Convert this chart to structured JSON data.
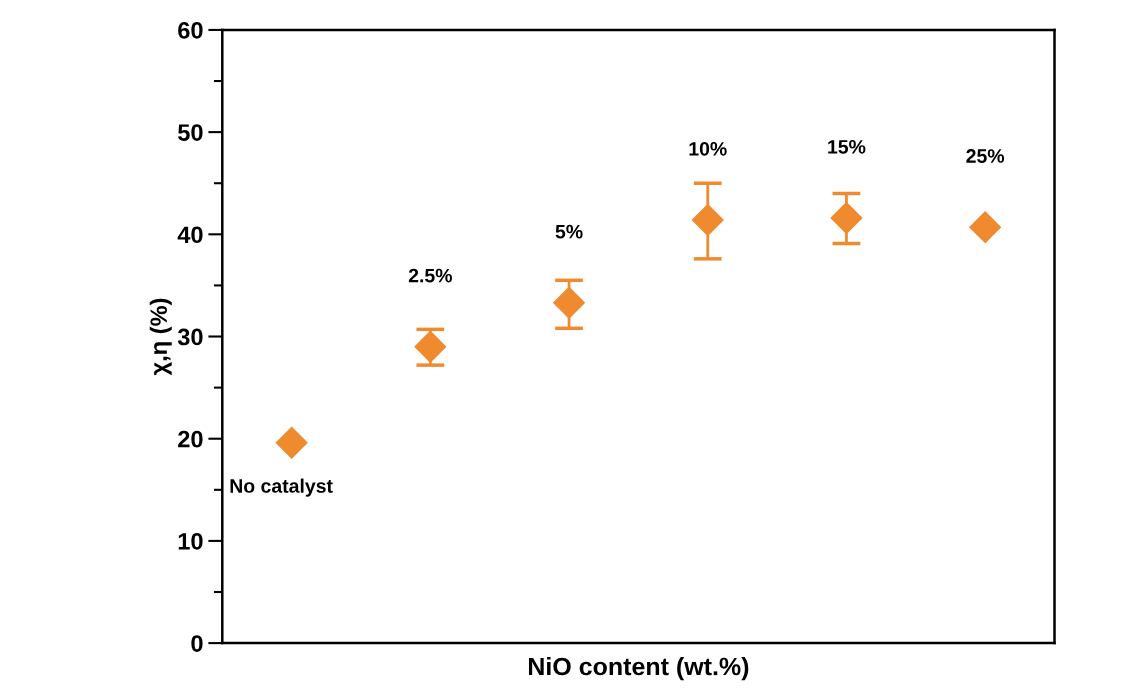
{
  "chart_data": {
    "type": "scatter",
    "xlabel": "NiO content (wt.%)",
    "ylabel": "χ,η (%)",
    "categories": [
      null,
      null,
      null,
      null,
      null,
      null
    ],
    "series": [
      {
        "color": "#f08a2e",
        "values": [
          19.6,
          29.0,
          33.3,
          41.4,
          41.6,
          40.7
        ],
        "errors": [
          null,
          [
            27.2,
            30.7
          ],
          [
            30.8,
            35.5
          ],
          [
            37.6,
            45.0
          ],
          [
            39.1,
            44.0
          ],
          null
        ]
      }
    ],
    "annotations": [
      "No catalyst",
      "2.5%",
      "5%",
      "10%",
      "15%",
      "25%"
    ],
    "ylim": [
      0,
      60
    ],
    "yticks": [
      0,
      10,
      20,
      30,
      40,
      50,
      60
    ],
    "marker": "diamond",
    "grid": false,
    "legend": false
  }
}
